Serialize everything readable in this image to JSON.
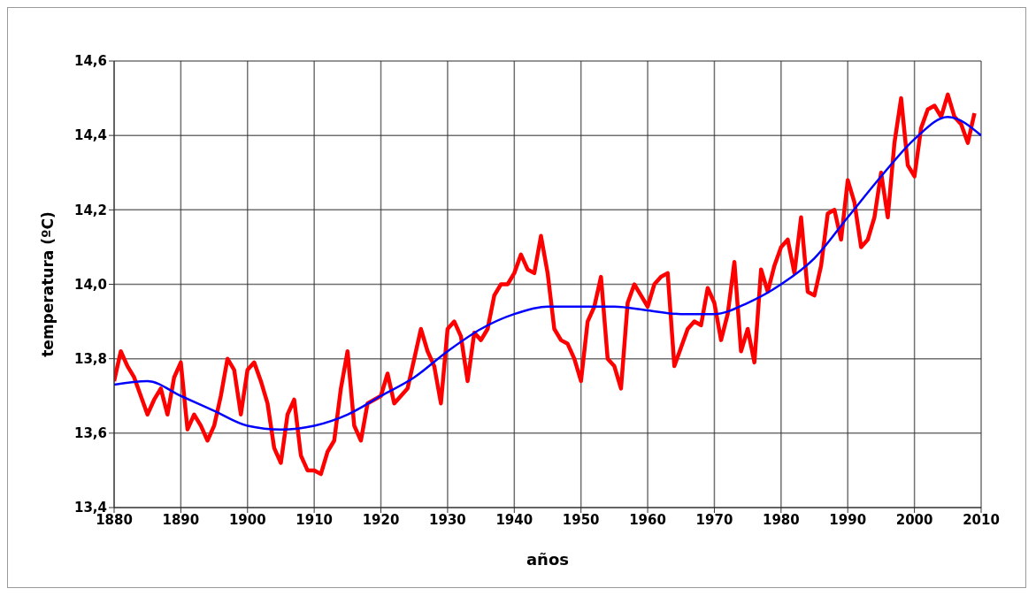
{
  "chart_data": {
    "type": "line",
    "xlabel": "años",
    "ylabel": "temperatura (ºC)",
    "xlim": [
      1880,
      2010
    ],
    "xticks": [
      1880,
      1890,
      1900,
      1910,
      1920,
      1930,
      1940,
      1950,
      1960,
      1970,
      1980,
      1990,
      2000,
      2010
    ],
    "ylim": [
      13.4,
      14.6
    ],
    "yticks": [
      {
        "value": 13.4,
        "label": "13,4"
      },
      {
        "value": 13.6,
        "label": "13,6"
      },
      {
        "value": 13.8,
        "label": "13,8"
      },
      {
        "value": 14.0,
        "label": "14,0"
      },
      {
        "value": 14.2,
        "label": "14,2"
      },
      {
        "value": 14.4,
        "label": "14,4"
      },
      {
        "value": 14.6,
        "label": "14,6"
      }
    ],
    "grid": true,
    "series": [
      {
        "color": "#ff0000",
        "x": [
          1880,
          1881,
          1882,
          1883,
          1884,
          1885,
          1886,
          1887,
          1888,
          1889,
          1890,
          1891,
          1892,
          1893,
          1894,
          1895,
          1896,
          1897,
          1898,
          1899,
          1900,
          1901,
          1902,
          1903,
          1904,
          1905,
          1906,
          1907,
          1908,
          1909,
          1910,
          1911,
          1912,
          1913,
          1914,
          1915,
          1916,
          1917,
          1918,
          1919,
          1920,
          1921,
          1922,
          1923,
          1924,
          1925,
          1926,
          1927,
          1928,
          1929,
          1930,
          1931,
          1932,
          1933,
          1934,
          1935,
          1936,
          1937,
          1938,
          1939,
          1940,
          1941,
          1942,
          1943,
          1944,
          1945,
          1946,
          1947,
          1948,
          1949,
          1950,
          1951,
          1952,
          1953,
          1954,
          1955,
          1956,
          1957,
          1958,
          1959,
          1960,
          1961,
          1962,
          1963,
          1964,
          1965,
          1966,
          1967,
          1968,
          1969,
          1970,
          1971,
          1972,
          1973,
          1974,
          1975,
          1976,
          1977,
          1978,
          1979,
          1980,
          1981,
          1982,
          1983,
          1984,
          1985,
          1986,
          1987,
          1988,
          1989,
          1990,
          1991,
          1992,
          1993,
          1994,
          1995,
          1996,
          1997,
          1998,
          1999,
          2000,
          2001,
          2002,
          2003,
          2004,
          2005,
          2006,
          2007,
          2008,
          2009
        ],
        "values": [
          13.74,
          13.82,
          13.78,
          13.75,
          13.7,
          13.65,
          13.69,
          13.72,
          13.65,
          13.75,
          13.79,
          13.61,
          13.65,
          13.62,
          13.58,
          13.62,
          13.7,
          13.8,
          13.77,
          13.65,
          13.77,
          13.79,
          13.74,
          13.68,
          13.56,
          13.52,
          13.65,
          13.69,
          13.54,
          13.5,
          13.5,
          13.49,
          13.55,
          13.58,
          13.72,
          13.82,
          13.62,
          13.58,
          13.68,
          13.69,
          13.7,
          13.76,
          13.68,
          13.7,
          13.72,
          13.8,
          13.88,
          13.82,
          13.78,
          13.68,
          13.88,
          13.9,
          13.86,
          13.74,
          13.87,
          13.85,
          13.88,
          13.97,
          14.0,
          14.0,
          14.03,
          14.08,
          14.04,
          14.03,
          14.13,
          14.03,
          13.88,
          13.85,
          13.84,
          13.8,
          13.74,
          13.9,
          13.94,
          14.02,
          13.8,
          13.78,
          13.72,
          13.95,
          14.0,
          13.97,
          13.94,
          14.0,
          14.02,
          14.03,
          13.78,
          13.83,
          13.88,
          13.9,
          13.89,
          13.99,
          13.95,
          13.85,
          13.92,
          14.06,
          13.82,
          13.88,
          13.79,
          14.04,
          13.98,
          14.05,
          14.1,
          14.12,
          14.03,
          14.18,
          13.98,
          13.97,
          14.05,
          14.19,
          14.2,
          14.12,
          14.28,
          14.22,
          14.1,
          14.12,
          14.18,
          14.3,
          14.18,
          14.38,
          14.5,
          14.32,
          14.29,
          14.42,
          14.47,
          14.48,
          14.45,
          14.51,
          14.45,
          14.43,
          14.38,
          14.46
        ]
      },
      {
        "color": "#0000ff",
        "x": [
          1880,
          1885,
          1890,
          1895,
          1900,
          1905,
          1910,
          1915,
          1920,
          1925,
          1930,
          1935,
          1940,
          1945,
          1950,
          1955,
          1960,
          1965,
          1970,
          1975,
          1980,
          1985,
          1990,
          1995,
          2000,
          2005,
          2010
        ],
        "values": [
          13.73,
          13.74,
          13.7,
          13.66,
          13.62,
          13.61,
          13.62,
          13.65,
          13.7,
          13.75,
          13.82,
          13.88,
          13.92,
          13.94,
          13.94,
          13.94,
          13.93,
          13.92,
          13.92,
          13.95,
          14.0,
          14.07,
          14.18,
          14.29,
          14.39,
          14.45,
          14.4
        ]
      }
    ]
  }
}
